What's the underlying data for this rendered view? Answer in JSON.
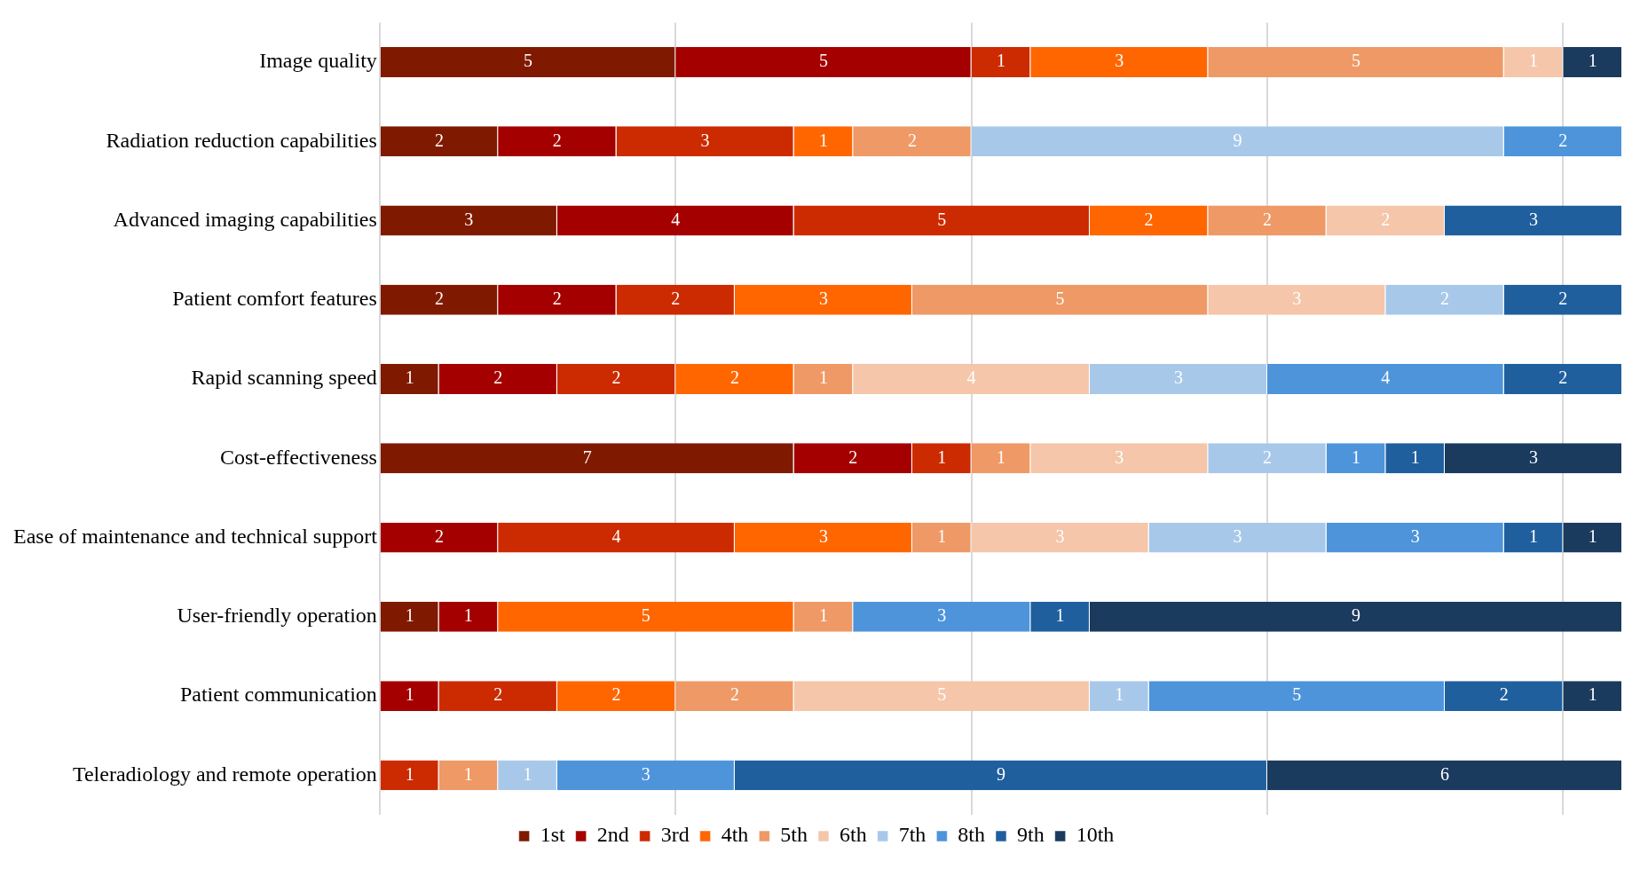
{
  "chart_data": {
    "type": "bar",
    "orientation": "horizontal",
    "stacked": true,
    "data_labels": true,
    "grid": "x",
    "legend": "bottom",
    "tick_labels": "y",
    "xlim": [
      0,
      21
    ],
    "xticks": [
      {
        "value": 0,
        "label": null
      },
      {
        "value": 5,
        "label": null
      },
      {
        "value": 10,
        "label": null
      },
      {
        "value": 15,
        "label": null
      },
      {
        "value": 20,
        "label": null
      }
    ],
    "categories": [
      "Image quality",
      "Radiation reduction capabilities",
      "Advanced imaging capabilities",
      "Patient comfort features",
      "Rapid scanning speed",
      "Cost-effectiveness",
      "Ease of maintenance and technical support",
      "User-friendly operation",
      "Patient communication",
      "Teleradiology and remote operation"
    ],
    "series": [
      {
        "name": "1st",
        "color": "#7f1a00",
        "values": [
          5,
          2,
          3,
          2,
          1,
          7,
          null,
          1,
          null,
          null
        ]
      },
      {
        "name": "2nd",
        "color": "#a50000",
        "values": [
          5,
          2,
          4,
          2,
          2,
          2,
          2,
          1,
          1,
          null
        ]
      },
      {
        "name": "3rd",
        "color": "#cc2a00",
        "values": [
          1,
          3,
          5,
          2,
          2,
          1,
          4,
          null,
          2,
          1
        ]
      },
      {
        "name": "4th",
        "color": "#ff6600",
        "values": [
          3,
          1,
          2,
          3,
          2,
          null,
          3,
          5,
          2,
          null
        ]
      },
      {
        "name": "5th",
        "color": "#ee9966",
        "values": [
          5,
          2,
          2,
          5,
          1,
          1,
          1,
          1,
          2,
          1
        ]
      },
      {
        "name": "6th",
        "color": "#f5c6aa",
        "values": [
          1,
          null,
          2,
          3,
          4,
          3,
          3,
          null,
          5,
          null
        ]
      },
      {
        "name": "7th",
        "color": "#a8c8ea",
        "values": [
          null,
          9,
          null,
          2,
          3,
          2,
          3,
          null,
          1,
          1
        ]
      },
      {
        "name": "8th",
        "color": "#4d94db",
        "values": [
          null,
          2,
          null,
          null,
          4,
          1,
          3,
          3,
          5,
          3
        ]
      },
      {
        "name": "9th",
        "color": "#1f5f9e",
        "values": [
          null,
          null,
          3,
          2,
          2,
          1,
          1,
          1,
          2,
          9
        ]
      },
      {
        "name": "10th",
        "color": "#1a3a5e",
        "values": [
          1,
          null,
          null,
          null,
          null,
          3,
          1,
          9,
          1,
          6
        ]
      }
    ]
  }
}
